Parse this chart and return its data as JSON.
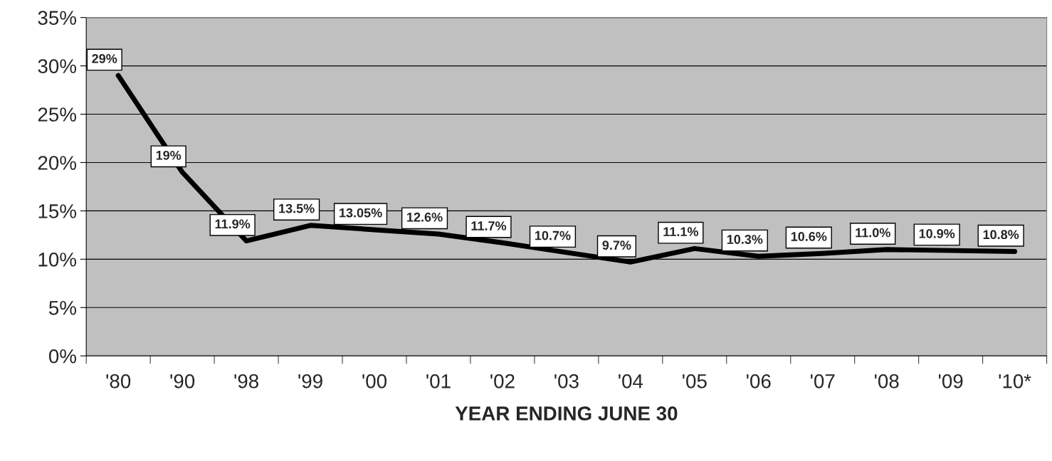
{
  "chart_data": {
    "type": "line",
    "xlabel": "YEAR ENDING JUNE 30",
    "categories": [
      "'80",
      "'90",
      "'98",
      "'99",
      "'00",
      "'01",
      "'02",
      "'03",
      "'04",
      "'05",
      "'06",
      "'07",
      "'08",
      "'09",
      "'10*"
    ],
    "series": [
      {
        "color": "#000000",
        "values": [
          29,
          19,
          11.9,
          13.5,
          13.05,
          12.6,
          11.7,
          10.7,
          9.7,
          11.1,
          10.3,
          10.6,
          11.0,
          10.9,
          10.8
        ],
        "value_labels": [
          "29%",
          "19%",
          "11.9%",
          "13.5%",
          "13.05%",
          "12.6%",
          "11.7%",
          "10.7%",
          "9.7%",
          "11.1%",
          "10.3%",
          "10.6%",
          "11.0%",
          "10.9%",
          "10.8%"
        ]
      }
    ],
    "ylim": [
      0,
      35
    ],
    "yticks": [
      {
        "value": 0,
        "label": "0%"
      },
      {
        "value": 5,
        "label": "5%"
      },
      {
        "value": 10,
        "label": "10%"
      },
      {
        "value": 15,
        "label": "15%"
      },
      {
        "value": 20,
        "label": "20%"
      },
      {
        "value": 25,
        "label": "25%"
      },
      {
        "value": 30,
        "label": "30%"
      },
      {
        "value": 35,
        "label": "35%"
      }
    ],
    "grid": "y",
    "legend": false,
    "marker": "none",
    "line_style": "solid"
  }
}
